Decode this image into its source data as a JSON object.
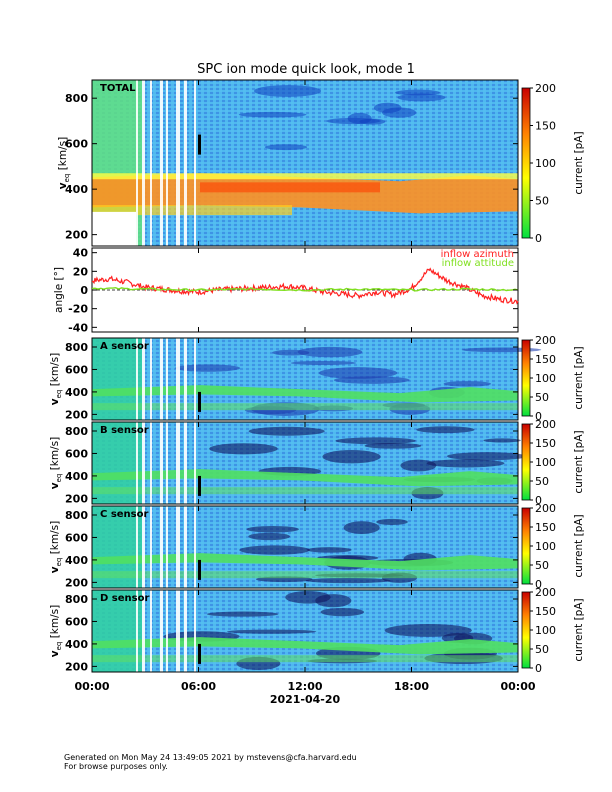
{
  "title": "SPC ion mode quick look, mode 1",
  "footer_lines": [
    "Generated on Mon May 24 13:49:05 2021 by mstevens@cfa.harvard.edu",
    "For browse purposes only."
  ],
  "colors": {
    "background": "#4fb8f0",
    "colormap": [
      "#00e040",
      "#ffff00",
      "#ff8000",
      "#c80000"
    ],
    "azimuth": "#ff2020",
    "elevation": "#80e020"
  },
  "chart_data": [
    {
      "type": "heatmap",
      "panel_label": "TOTAL",
      "x": [
        "00:00",
        "06:00",
        "12:00",
        "18:00",
        "00:00"
      ],
      "ylim": [
        150,
        880
      ],
      "yticks": [
        200,
        400,
        600,
        800
      ],
      "ylabel_main": "v",
      "ylabel_sub": "eq",
      "ylabel_unit": "[km/s]",
      "colorbar": {
        "label": "current [pA]",
        "ticks": [
          0,
          50,
          100,
          150,
          200
        ],
        "range": [
          0,
          200
        ]
      }
    },
    {
      "type": "line",
      "ylim": [
        -45,
        45
      ],
      "yticks": [
        -40,
        -20,
        0,
        20,
        40
      ],
      "ylabel": "angle [°]",
      "series": [
        {
          "name": "inflow azimuth",
          "color": "#ff2020",
          "values": [
            [
              0,
              10
            ],
            [
              1,
              12
            ],
            [
              2,
              8
            ],
            [
              3,
              3
            ],
            [
              4,
              1
            ],
            [
              5,
              -1
            ],
            [
              6,
              -2
            ],
            [
              7,
              0
            ],
            [
              8,
              1
            ],
            [
              9,
              2
            ],
            [
              10,
              3
            ],
            [
              11,
              4
            ],
            [
              12,
              2
            ],
            [
              13,
              -2
            ],
            [
              14,
              -4
            ],
            [
              15,
              -6
            ],
            [
              16,
              -2
            ],
            [
              17,
              -5
            ],
            [
              18,
              2
            ],
            [
              19,
              22
            ],
            [
              20,
              10
            ],
            [
              21,
              3
            ],
            [
              22,
              -6
            ],
            [
              23,
              -10
            ],
            [
              24,
              -12
            ]
          ]
        },
        {
          "name": "inflow attitude",
          "color": "#80e020",
          "values": [
            [
              0,
              2
            ],
            [
              3,
              1
            ],
            [
              6,
              0
            ],
            [
              9,
              1
            ],
            [
              12,
              0
            ],
            [
              15,
              1
            ],
            [
              18,
              0
            ],
            [
              21,
              1
            ],
            [
              24,
              0
            ]
          ]
        }
      ]
    },
    {
      "type": "heatmap",
      "panel_label": "A sensor",
      "ylim": [
        150,
        880
      ],
      "yticks": [
        200,
        400,
        600,
        800
      ],
      "ylabel_main": "v",
      "ylabel_sub": "eq",
      "ylabel_unit": "[km/s]",
      "colorbar": {
        "label": "current [pA]",
        "ticks": [
          0,
          50,
          100,
          150,
          200
        ],
        "range": [
          0,
          200
        ]
      }
    },
    {
      "type": "heatmap",
      "panel_label": "B sensor",
      "ylim": [
        150,
        880
      ],
      "yticks": [
        200,
        400,
        600,
        800
      ],
      "ylabel_main": "v",
      "ylabel_sub": "eq",
      "ylabel_unit": "[km/s]",
      "colorbar": {
        "label": "current [pA]",
        "ticks": [
          0,
          50,
          100,
          150,
          200
        ],
        "range": [
          0,
          200
        ]
      }
    },
    {
      "type": "heatmap",
      "panel_label": "C sensor",
      "ylim": [
        150,
        880
      ],
      "yticks": [
        200,
        400,
        600,
        800
      ],
      "ylabel_main": "v",
      "ylabel_sub": "eq",
      "ylabel_unit": "[km/s]",
      "colorbar": {
        "label": "current [pA]",
        "ticks": [
          0,
          50,
          100,
          150,
          200
        ],
        "range": [
          0,
          200
        ]
      }
    },
    {
      "type": "heatmap",
      "panel_label": "D sensor",
      "ylim": [
        150,
        880
      ],
      "yticks": [
        200,
        400,
        600,
        800
      ],
      "ylabel_main": "v",
      "ylabel_sub": "eq",
      "ylabel_unit": "[km/s]",
      "colorbar": {
        "label": "current [pA]",
        "ticks": [
          0,
          50,
          100,
          150,
          200
        ],
        "range": [
          0,
          200
        ]
      }
    }
  ],
  "xaxis": {
    "ticks": [
      "00:00",
      "06:00",
      "12:00",
      "18:00",
      "00:00"
    ],
    "date_label": "2021-04-20"
  }
}
